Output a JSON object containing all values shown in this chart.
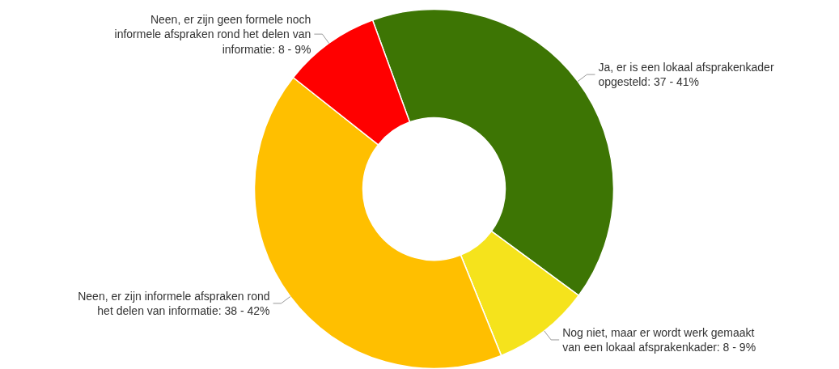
{
  "chart_data": {
    "type": "donut",
    "categories": [
      "Ja, er is een lokaal afsprakenkader opgesteld",
      "Nog niet, maar er wordt werk gemaakt van een lokaal afsprakenkader",
      "Neen, er zijn informele afspraken rond het delen van informatie",
      "Neen, er zijn geen formele noch informele afspraken rond het delen van informatie"
    ],
    "values": [
      37,
      8,
      38,
      8
    ],
    "value_labels": [
      "37 - 41%",
      "8 - 9%",
      "38 - 42%",
      "8 - 9%"
    ],
    "colors": [
      "#3d7504",
      "#f5e31c",
      "#ffbf00",
      "#ff0000"
    ]
  }
}
